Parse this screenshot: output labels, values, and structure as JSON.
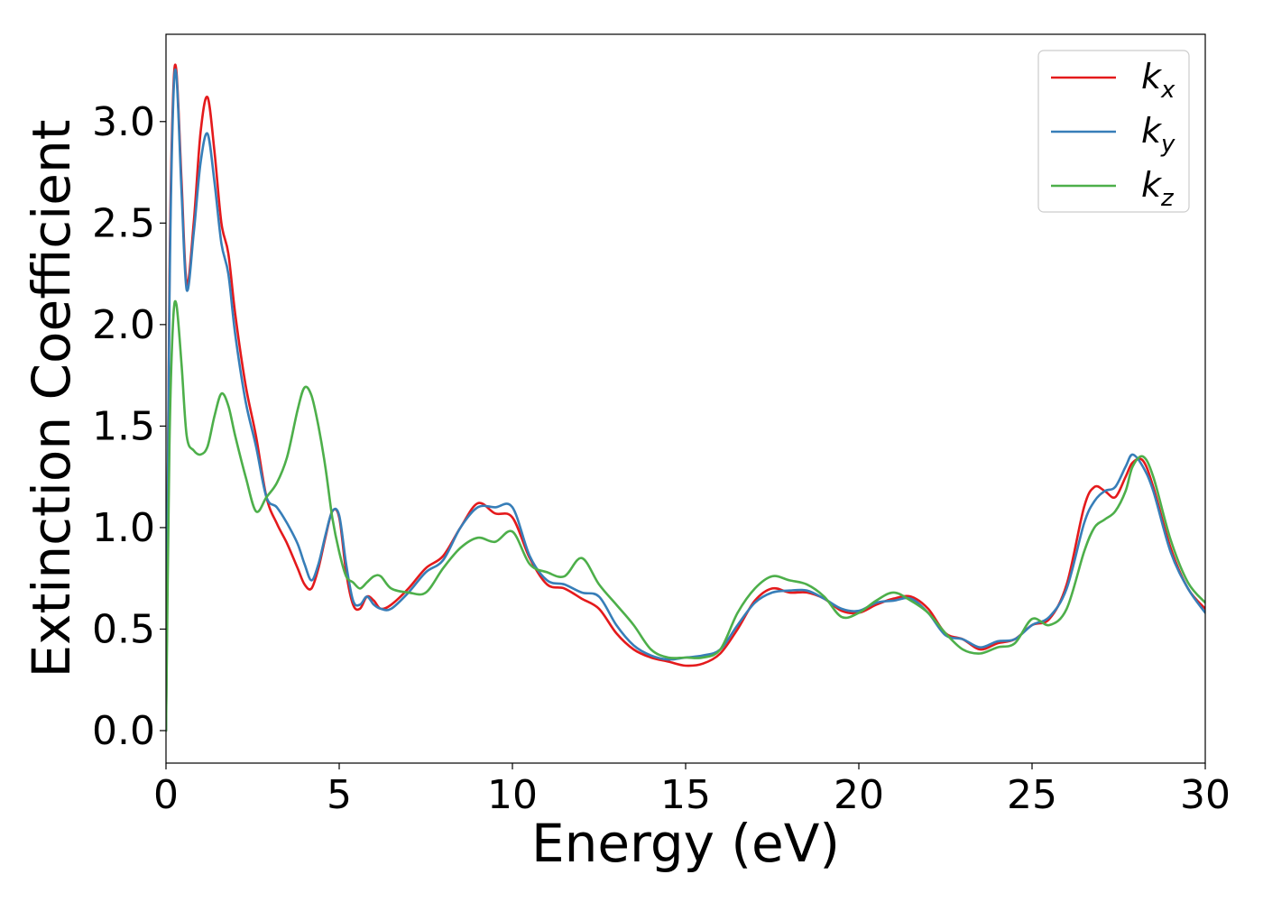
{
  "chart_data": {
    "type": "line",
    "xlabel": "Energy (eV)",
    "ylabel": "Extinction Coefficient",
    "xlim": [
      0,
      30
    ],
    "ylim": [
      -0.16,
      3.43
    ],
    "xticks": [
      0,
      5,
      10,
      15,
      20,
      25,
      30
    ],
    "xtick_labels": [
      "0",
      "5",
      "10",
      "15",
      "20",
      "25",
      "30"
    ],
    "yticks": [
      0.0,
      0.5,
      1.0,
      1.5,
      2.0,
      2.5,
      3.0
    ],
    "ytick_labels": [
      "0.0",
      "0.5",
      "1.0",
      "1.5",
      "2.0",
      "2.5",
      "3.0"
    ],
    "grid": false,
    "legend_position": "top-right",
    "series": [
      {
        "name": "k",
        "subscript": "x",
        "color": "#e41a1c",
        "x": [
          0,
          0.1,
          0.2,
          0.3,
          0.45,
          0.6,
          0.8,
          1.0,
          1.2,
          1.4,
          1.6,
          1.8,
          2.0,
          2.3,
          2.6,
          2.9,
          3.2,
          3.5,
          3.8,
          4.0,
          4.2,
          4.4,
          4.6,
          4.8,
          5.0,
          5.2,
          5.4,
          5.6,
          5.8,
          6.0,
          6.2,
          6.5,
          7.0,
          7.5,
          8.0,
          8.5,
          9.0,
          9.5,
          10.0,
          10.5,
          11.0,
          11.5,
          12.0,
          12.5,
          13.0,
          13.5,
          14.0,
          14.5,
          15.0,
          15.5,
          16.0,
          16.5,
          17.0,
          17.5,
          18.0,
          18.5,
          19.0,
          19.5,
          20.0,
          20.5,
          21.0,
          21.5,
          22.0,
          22.5,
          23.0,
          23.5,
          24.0,
          24.5,
          25.0,
          25.5,
          26.0,
          26.5,
          26.8,
          27.1,
          27.4,
          27.7,
          27.9,
          28.2,
          28.5,
          29.0,
          29.5,
          30.0
        ],
        "y": [
          0.0,
          2.2,
          3.1,
          3.25,
          2.7,
          2.2,
          2.5,
          2.95,
          3.12,
          2.85,
          2.5,
          2.35,
          2.05,
          1.7,
          1.45,
          1.15,
          1.02,
          0.92,
          0.8,
          0.72,
          0.7,
          0.8,
          0.95,
          1.08,
          1.05,
          0.78,
          0.62,
          0.6,
          0.66,
          0.64,
          0.6,
          0.62,
          0.7,
          0.8,
          0.86,
          1.0,
          1.12,
          1.07,
          1.05,
          0.85,
          0.72,
          0.7,
          0.65,
          0.6,
          0.48,
          0.4,
          0.36,
          0.34,
          0.32,
          0.33,
          0.38,
          0.5,
          0.64,
          0.7,
          0.68,
          0.68,
          0.65,
          0.59,
          0.58,
          0.62,
          0.65,
          0.66,
          0.6,
          0.48,
          0.45,
          0.4,
          0.43,
          0.45,
          0.52,
          0.55,
          0.72,
          1.1,
          1.2,
          1.18,
          1.15,
          1.25,
          1.32,
          1.33,
          1.2,
          0.9,
          0.7,
          0.6
        ]
      },
      {
        "name": "k",
        "subscript": "y",
        "color": "#377eb8",
        "x": [
          0,
          0.1,
          0.2,
          0.3,
          0.45,
          0.6,
          0.8,
          1.0,
          1.2,
          1.4,
          1.6,
          1.8,
          2.0,
          2.3,
          2.6,
          2.9,
          3.2,
          3.5,
          3.8,
          4.0,
          4.2,
          4.4,
          4.6,
          4.8,
          5.0,
          5.2,
          5.4,
          5.6,
          5.8,
          6.0,
          6.2,
          6.5,
          7.0,
          7.5,
          8.0,
          8.5,
          9.0,
          9.5,
          10.0,
          10.5,
          11.0,
          11.5,
          12.0,
          12.5,
          13.0,
          13.5,
          14.0,
          14.5,
          15.0,
          15.5,
          16.0,
          16.5,
          17.0,
          17.5,
          18.0,
          18.5,
          19.0,
          19.5,
          20.0,
          20.5,
          21.0,
          21.5,
          22.0,
          22.5,
          23.0,
          23.5,
          24.0,
          24.5,
          25.0,
          25.5,
          26.0,
          26.5,
          26.8,
          27.1,
          27.4,
          27.7,
          27.9,
          28.2,
          28.5,
          29.0,
          29.5,
          30.0
        ],
        "y": [
          0.0,
          2.1,
          3.05,
          3.23,
          2.65,
          2.17,
          2.45,
          2.8,
          2.94,
          2.7,
          2.4,
          2.25,
          1.95,
          1.62,
          1.4,
          1.15,
          1.1,
          1.02,
          0.92,
          0.82,
          0.74,
          0.82,
          0.96,
          1.08,
          1.06,
          0.82,
          0.64,
          0.62,
          0.66,
          0.62,
          0.6,
          0.6,
          0.68,
          0.78,
          0.84,
          1.0,
          1.1,
          1.1,
          1.1,
          0.86,
          0.74,
          0.72,
          0.68,
          0.66,
          0.52,
          0.42,
          0.37,
          0.35,
          0.36,
          0.37,
          0.4,
          0.52,
          0.63,
          0.68,
          0.69,
          0.69,
          0.65,
          0.6,
          0.59,
          0.63,
          0.64,
          0.65,
          0.58,
          0.47,
          0.45,
          0.41,
          0.44,
          0.45,
          0.52,
          0.56,
          0.7,
          1.02,
          1.13,
          1.18,
          1.2,
          1.3,
          1.36,
          1.3,
          1.18,
          0.88,
          0.7,
          0.58
        ]
      },
      {
        "name": "k",
        "subscript": "z",
        "color": "#4daf4a",
        "x": [
          0,
          0.1,
          0.2,
          0.3,
          0.45,
          0.6,
          0.8,
          1.0,
          1.2,
          1.4,
          1.6,
          1.8,
          2.0,
          2.3,
          2.6,
          2.9,
          3.2,
          3.5,
          3.8,
          4.0,
          4.2,
          4.4,
          4.6,
          4.8,
          5.0,
          5.2,
          5.4,
          5.6,
          5.8,
          6.0,
          6.2,
          6.5,
          7.0,
          7.5,
          8.0,
          8.5,
          9.0,
          9.5,
          10.0,
          10.5,
          11.0,
          11.5,
          12.0,
          12.5,
          13.0,
          13.5,
          14.0,
          14.5,
          15.0,
          15.5,
          16.0,
          16.5,
          17.0,
          17.5,
          18.0,
          18.5,
          19.0,
          19.5,
          20.0,
          20.5,
          21.0,
          21.5,
          22.0,
          22.5,
          23.0,
          23.5,
          24.0,
          24.5,
          25.0,
          25.5,
          26.0,
          26.5,
          26.8,
          27.1,
          27.4,
          27.7,
          27.9,
          28.2,
          28.5,
          29.0,
          29.5,
          30.0
        ],
        "y": [
          0.0,
          1.4,
          2.0,
          2.1,
          1.8,
          1.45,
          1.38,
          1.36,
          1.4,
          1.55,
          1.66,
          1.6,
          1.45,
          1.25,
          1.08,
          1.15,
          1.22,
          1.35,
          1.58,
          1.69,
          1.65,
          1.5,
          1.3,
          1.05,
          0.88,
          0.76,
          0.73,
          0.7,
          0.73,
          0.76,
          0.76,
          0.7,
          0.68,
          0.68,
          0.8,
          0.9,
          0.95,
          0.93,
          0.98,
          0.82,
          0.78,
          0.76,
          0.85,
          0.72,
          0.62,
          0.52,
          0.4,
          0.36,
          0.36,
          0.36,
          0.4,
          0.58,
          0.7,
          0.76,
          0.74,
          0.72,
          0.66,
          0.56,
          0.58,
          0.64,
          0.68,
          0.64,
          0.58,
          0.48,
          0.4,
          0.38,
          0.41,
          0.43,
          0.55,
          0.52,
          0.6,
          0.88,
          1.0,
          1.04,
          1.08,
          1.18,
          1.3,
          1.35,
          1.25,
          0.94,
          0.73,
          0.63
        ]
      }
    ]
  }
}
